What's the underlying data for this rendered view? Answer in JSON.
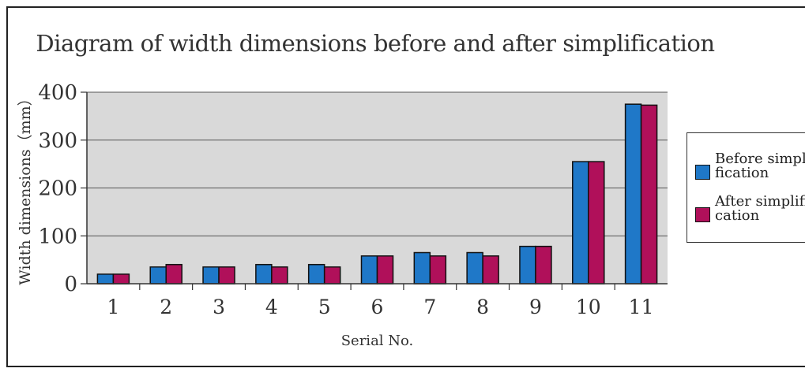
{
  "chart_data": {
    "type": "bar",
    "title": "Diagram of width dimensions before and after simplification",
    "xlabel": "Serial No.",
    "ylabel": "Width dimensions（mm）",
    "categories": [
      "1",
      "2",
      "3",
      "4",
      "5",
      "6",
      "7",
      "8",
      "9",
      "10",
      "11"
    ],
    "ylim": [
      0,
      400
    ],
    "yticks": [
      "0",
      "100",
      "200",
      "300",
      "400"
    ],
    "grid": true,
    "legend_position": "right",
    "series": [
      {
        "name": "Before simplification",
        "legend_lines": [
          "Before simpli-",
          "fication"
        ],
        "color": "#1f78c8",
        "values": [
          20,
          35,
          35,
          40,
          40,
          58,
          65,
          65,
          78,
          255,
          375
        ]
      },
      {
        "name": "After simplification",
        "legend_lines": [
          "After simplifi-",
          "cation"
        ],
        "color": "#b0105a",
        "values": [
          20,
          40,
          35,
          35,
          35,
          58,
          58,
          58,
          78,
          255,
          373
        ]
      }
    ],
    "plot_background": "#d9d9d9"
  }
}
